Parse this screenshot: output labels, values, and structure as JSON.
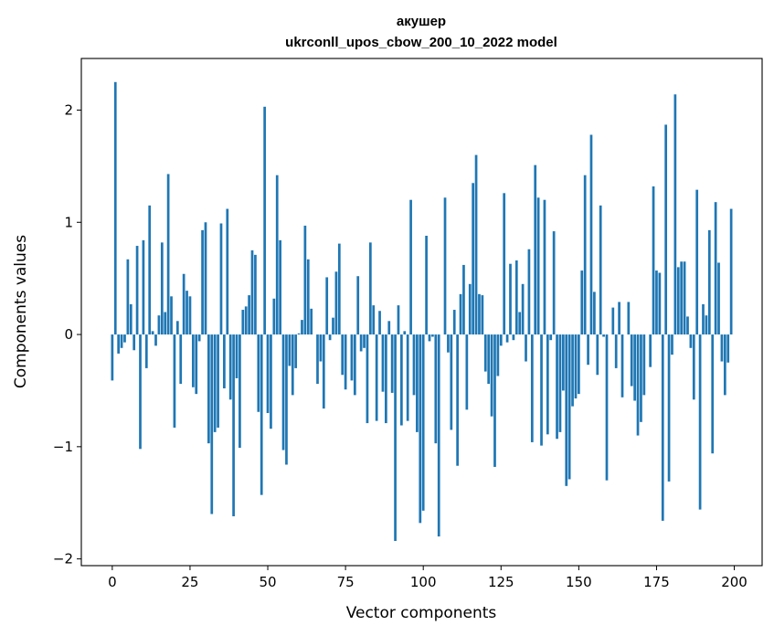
{
  "chart_data": {
    "type": "bar",
    "title": "акушер",
    "subtitle": "ukrconll_upos_cbow_200_10_2022 model",
    "xlabel": "Vector components",
    "ylabel": "Components values",
    "xlim": [
      -9.95,
      208.95
    ],
    "ylim": [
      -2.06,
      2.46
    ],
    "xticks": [
      0,
      25,
      50,
      75,
      100,
      125,
      150,
      175,
      200
    ],
    "yticks": [
      -2,
      -1,
      0,
      1,
      2
    ],
    "ytick_labels": [
      "−2",
      "−1",
      "0",
      "1",
      "2"
    ],
    "grid": false,
    "bar_color": "#1f77b4",
    "x": [
      0,
      1,
      2,
      3,
      4,
      5,
      6,
      7,
      8,
      9,
      10,
      11,
      12,
      13,
      14,
      15,
      16,
      17,
      18,
      19,
      20,
      21,
      22,
      23,
      24,
      25,
      26,
      27,
      28,
      29,
      30,
      31,
      32,
      33,
      34,
      35,
      36,
      37,
      38,
      39,
      40,
      41,
      42,
      43,
      44,
      45,
      46,
      47,
      48,
      49,
      50,
      51,
      52,
      53,
      54,
      55,
      56,
      57,
      58,
      59,
      60,
      61,
      62,
      63,
      64,
      65,
      66,
      67,
      68,
      69,
      70,
      71,
      72,
      73,
      74,
      75,
      76,
      77,
      78,
      79,
      80,
      81,
      82,
      83,
      84,
      85,
      86,
      87,
      88,
      89,
      90,
      91,
      92,
      93,
      94,
      95,
      96,
      97,
      98,
      99,
      100,
      101,
      102,
      103,
      104,
      105,
      106,
      107,
      108,
      109,
      110,
      111,
      112,
      113,
      114,
      115,
      116,
      117,
      118,
      119,
      120,
      121,
      122,
      123,
      124,
      125,
      126,
      127,
      128,
      129,
      130,
      131,
      132,
      133,
      134,
      135,
      136,
      137,
      138,
      139,
      140,
      141,
      142,
      143,
      144,
      145,
      146,
      147,
      148,
      149,
      150,
      151,
      152,
      153,
      154,
      155,
      156,
      157,
      158,
      159,
      160,
      161,
      162,
      163,
      164,
      165,
      166,
      167,
      168,
      169,
      170,
      171,
      172,
      173,
      174,
      175,
      176,
      177,
      178,
      179,
      180,
      181,
      182,
      183,
      184,
      185,
      186,
      187,
      188,
      189,
      190,
      191,
      192,
      193,
      194,
      195,
      196,
      197,
      198,
      199
    ],
    "values": [
      -0.41,
      2.25,
      -0.17,
      -0.12,
      -0.07,
      0.67,
      0.27,
      -0.14,
      0.79,
      -1.02,
      0.84,
      -0.3,
      1.15,
      0.03,
      -0.1,
      0.17,
      0.82,
      0.2,
      1.43,
      0.34,
      -0.83,
      0.12,
      -0.44,
      0.54,
      0.39,
      0.34,
      -0.47,
      -0.53,
      -0.06,
      0.93,
      1.0,
      -0.97,
      -1.6,
      -0.87,
      -0.83,
      0.99,
      -0.48,
      1.12,
      -0.58,
      -1.62,
      -0.39,
      -1.01,
      0.22,
      0.25,
      0.35,
      0.75,
      0.71,
      -0.69,
      -1.43,
      2.03,
      -0.7,
      -0.84,
      0.32,
      1.42,
      0.84,
      -1.03,
      -1.16,
      -0.28,
      -0.54,
      -0.3,
      0.01,
      0.13,
      0.97,
      0.67,
      0.23,
      0.0,
      -0.44,
      -0.24,
      -0.66,
      0.51,
      -0.05,
      0.15,
      0.56,
      0.81,
      -0.36,
      -0.49,
      0.0,
      -0.41,
      -0.54,
      0.52,
      -0.15,
      -0.12,
      -0.79,
      0.82,
      0.26,
      -0.77,
      0.21,
      -0.51,
      -0.79,
      0.12,
      -0.52,
      -1.84,
      0.26,
      -0.81,
      0.03,
      -0.77,
      1.2,
      -0.54,
      -0.87,
      -1.68,
      -1.57,
      0.88,
      -0.06,
      -0.02,
      -0.97,
      -1.8,
      0.0,
      1.22,
      -0.16,
      -0.85,
      0.22,
      -1.17,
      0.36,
      0.62,
      -0.67,
      0.45,
      1.35,
      1.6,
      0.36,
      0.35,
      -0.33,
      -0.44,
      -0.73,
      -1.18,
      -0.37,
      -0.1,
      1.26,
      -0.07,
      0.63,
      -0.05,
      0.66,
      0.2,
      0.45,
      -0.24,
      0.76,
      -0.96,
      1.51,
      1.22,
      -0.99,
      1.2,
      -0.89,
      -0.05,
      0.92,
      -0.93,
      -0.87,
      -0.5,
      -1.35,
      -1.29,
      -0.64,
      -0.57,
      -0.53,
      0.57,
      1.42,
      -0.27,
      1.78,
      0.38,
      -0.36,
      1.15,
      -0.02,
      -1.3,
      0.0,
      0.24,
      -0.3,
      0.29,
      -0.56,
      0.0,
      0.29,
      -0.46,
      -0.59,
      -0.9,
      -0.78,
      -0.54,
      0.0,
      -0.29,
      1.32,
      0.57,
      0.55,
      -1.66,
      1.87,
      -1.31,
      -0.18,
      2.14,
      0.6,
      0.65,
      0.65,
      0.16,
      -0.12,
      -0.58,
      1.29,
      -1.56,
      0.27,
      0.17,
      0.93,
      -1.06,
      1.18,
      0.64,
      -0.24,
      -0.54,
      -0.25,
      1.12
    ]
  }
}
